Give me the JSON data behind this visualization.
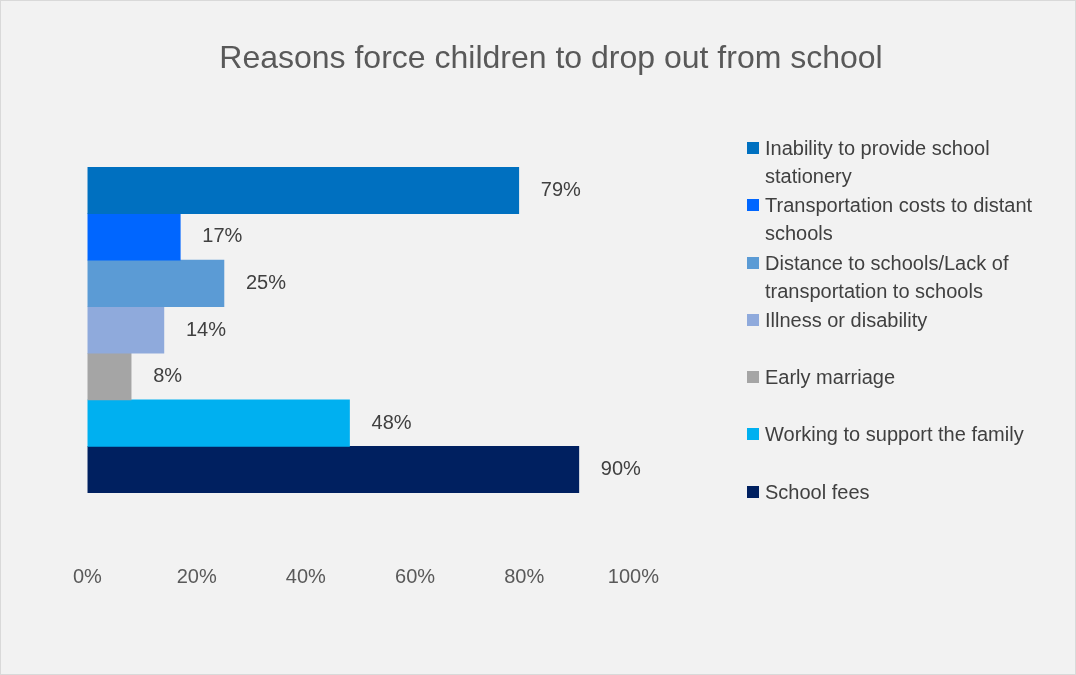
{
  "chart_data": {
    "type": "bar",
    "orientation": "horizontal",
    "title": "Reasons force children to drop out from school",
    "categories": [
      null
    ],
    "series": [
      {
        "name": "Inability to provide school stationery",
        "color": "#0070c0",
        "values": [
          79
        ],
        "value_labels": [
          "79%"
        ]
      },
      {
        "name": "Transportation costs to distant schools",
        "color": "#0066ff",
        "values": [
          17
        ],
        "value_labels": [
          "17%"
        ]
      },
      {
        "name": "Distance to schools/Lack of transportation to schools",
        "color": "#5b9bd5",
        "values": [
          25
        ],
        "value_labels": [
          "25%"
        ]
      },
      {
        "name": "Illness or disability",
        "color": "#8faadc",
        "values": [
          14
        ],
        "value_labels": [
          "14%"
        ]
      },
      {
        "name": "Early marriage",
        "color": "#a5a5a5",
        "values": [
          8
        ],
        "value_labels": [
          "8%"
        ]
      },
      {
        "name": "Working to support the family",
        "color": "#00b0f0",
        "values": [
          48
        ],
        "value_labels": [
          "48%"
        ]
      },
      {
        "name": "School fees",
        "color": "#002060",
        "values": [
          90
        ],
        "value_labels": [
          "90%"
        ]
      }
    ],
    "xlim": [
      0,
      100
    ],
    "xticks": [
      {
        "value": 0,
        "label": "0%"
      },
      {
        "value": 20,
        "label": "20%"
      },
      {
        "value": 40,
        "label": "40%"
      },
      {
        "value": 60,
        "label": "60%"
      },
      {
        "value": 80,
        "label": "80%"
      },
      {
        "value": 100,
        "label": "100%"
      }
    ],
    "grid": false,
    "legend": "right"
  }
}
